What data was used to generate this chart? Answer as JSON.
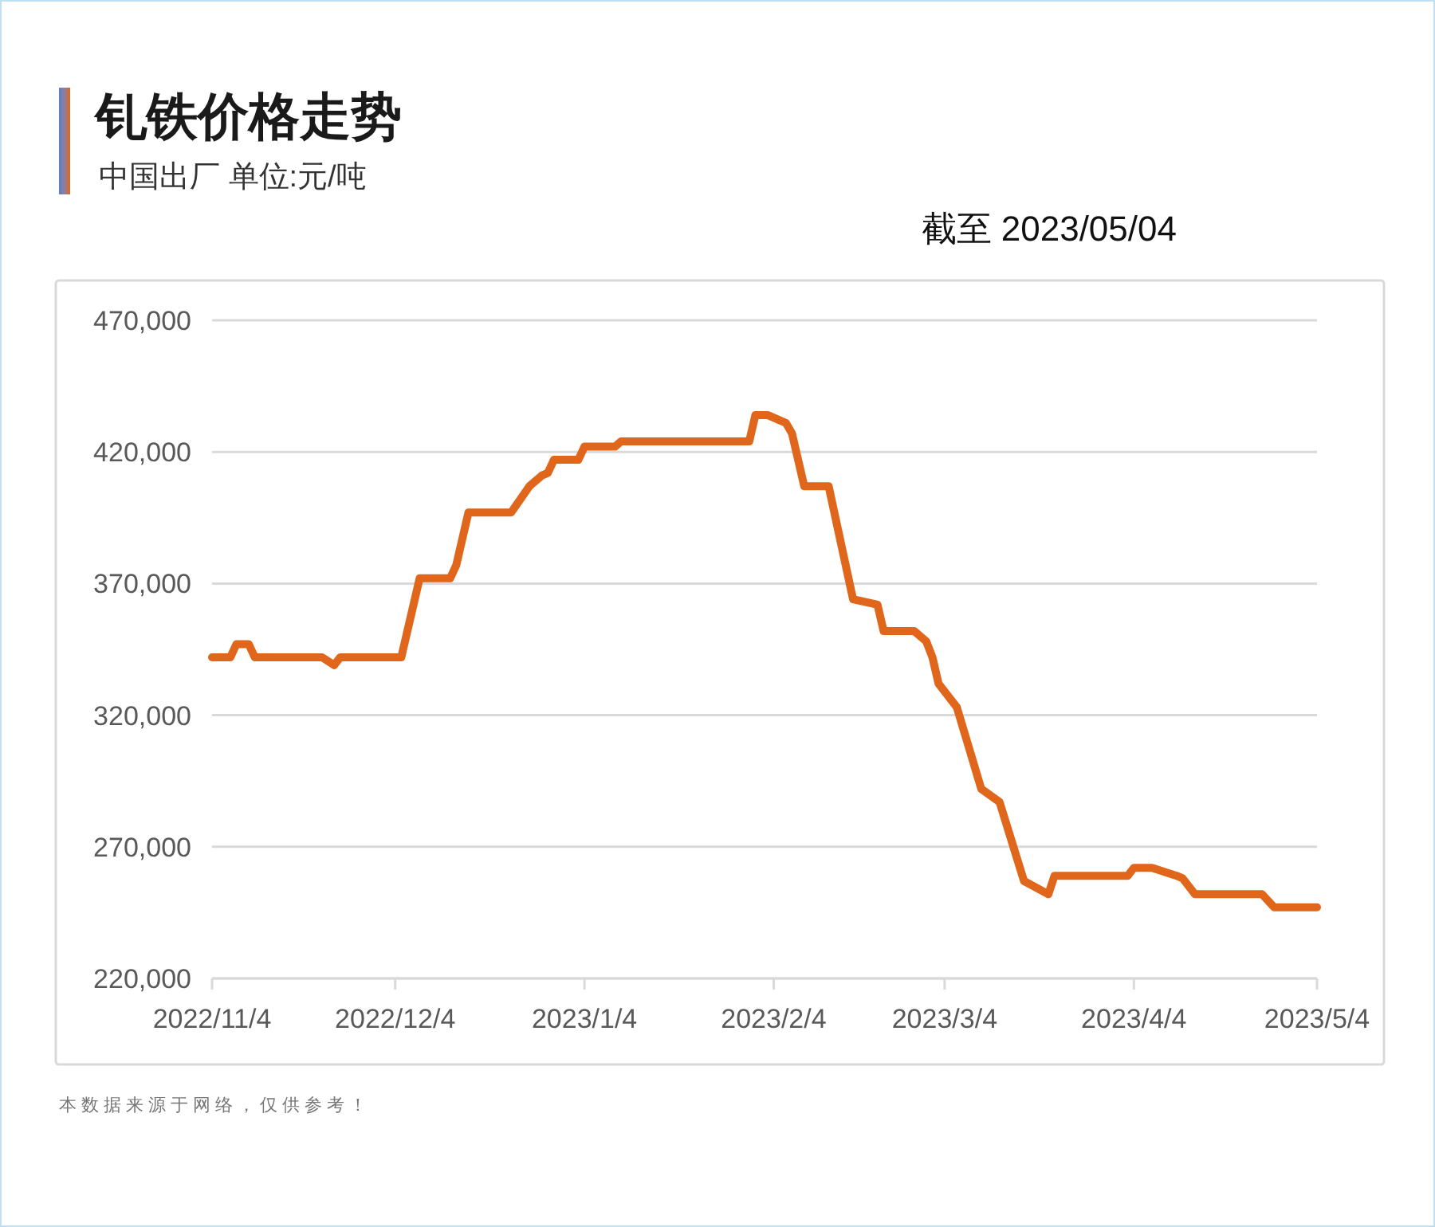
{
  "chart_data": {
    "type": "line",
    "title": "钆铁价格走势",
    "subtitle": "中国出厂 单位:元/吨",
    "annotations": [
      "截至 2023/05/04",
      "本数据来源于网络，仅供参考！"
    ],
    "x": [
      "2022-11-04",
      "2022-11-07",
      "2022-11-08",
      "2022-11-10",
      "2022-11-11",
      "2022-11-22",
      "2022-11-24",
      "2022-11-25",
      "2022-12-05",
      "2022-12-08",
      "2022-12-13",
      "2022-12-14",
      "2022-12-16",
      "2022-12-23",
      "2022-12-26",
      "2022-12-28",
      "2022-12-29",
      "2022-12-30",
      "2023-01-03",
      "2023-01-04",
      "2023-01-09",
      "2023-01-10",
      "2023-01-31",
      "2023-02-01",
      "2023-02-03",
      "2023-02-06",
      "2023-02-07",
      "2023-02-09",
      "2023-02-13",
      "2023-02-17",
      "2023-02-21",
      "2023-02-22",
      "2023-02-27",
      "2023-03-01",
      "2023-03-02",
      "2023-03-03",
      "2023-03-06",
      "2023-03-10",
      "2023-03-13",
      "2023-03-17",
      "2023-03-21",
      "2023-03-22",
      "2023-04-03",
      "2023-04-04",
      "2023-04-07",
      "2023-04-11",
      "2023-04-12",
      "2023-04-14",
      "2023-04-25",
      "2023-04-27",
      "2023-05-04"
    ],
    "series": [
      {
        "color": "#e0661b",
        "values": [
          342000,
          342000,
          347000,
          347000,
          342000,
          342000,
          339000,
          342000,
          342000,
          372000,
          372000,
          377000,
          397000,
          397000,
          407000,
          411000,
          412000,
          417000,
          417000,
          422000,
          422000,
          424000,
          424000,
          434000,
          434000,
          431000,
          427000,
          407000,
          407000,
          364000,
          362000,
          352000,
          352000,
          348000,
          342000,
          332000,
          323000,
          292000,
          287000,
          257000,
          252000,
          259000,
          259000,
          262000,
          262000,
          259000,
          258000,
          252000,
          252000,
          247000,
          247000
        ]
      }
    ],
    "xlim": [
      "2022-11-04",
      "2023-05-04"
    ],
    "xticks": [
      {
        "value": "2022-11-04",
        "label": "2022/11/4"
      },
      {
        "value": "2022-12-04",
        "label": "2022/12/4"
      },
      {
        "value": "2023-01-04",
        "label": "2023/1/4"
      },
      {
        "value": "2023-02-04",
        "label": "2023/2/4"
      },
      {
        "value": "2023-03-04",
        "label": "2023/3/4"
      },
      {
        "value": "2023-04-04",
        "label": "2023/4/4"
      },
      {
        "value": "2023-05-04",
        "label": "2023/5/4"
      }
    ],
    "ylim": [
      220000,
      470000
    ],
    "yticks": [
      {
        "value": 220000,
        "label": "220,000"
      },
      {
        "value": 270000,
        "label": "270,000"
      },
      {
        "value": 320000,
        "label": "320,000"
      },
      {
        "value": 370000,
        "label": "370,000"
      },
      {
        "value": 420000,
        "label": "420,000"
      },
      {
        "value": 470000,
        "label": "470,000"
      }
    ],
    "grid": "y",
    "line_style": "solid"
  }
}
